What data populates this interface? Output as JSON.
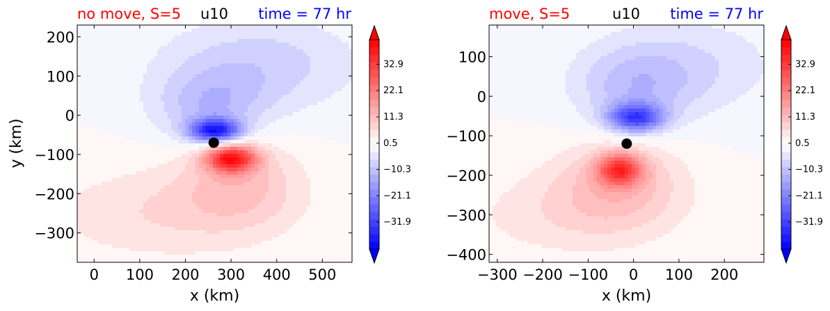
{
  "chart_data": [
    {
      "type": "heatmap",
      "title_left": "no move, S=5",
      "title_center": "u10",
      "title_right": "time = 77 hr",
      "title_left_color": "#ff0000",
      "title_center_color": "#000000",
      "title_right_color": "#0000ff",
      "xlabel": "x (km)",
      "ylabel": "y (km)",
      "xlim": [
        -37,
        565
      ],
      "ylim": [
        -375,
        230
      ],
      "xticks": [
        0,
        100,
        200,
        300,
        400,
        500
      ],
      "yticks": [
        200,
        100,
        0,
        -100,
        -200,
        -300
      ],
      "marker": {
        "x": 262,
        "y": -70
      },
      "features": [
        {
          "x": 265,
          "y": -40,
          "sx": 55,
          "sy": 30,
          "value": -36
        },
        {
          "x": 255,
          "y": 20,
          "sx": 120,
          "sy": 90,
          "value": -10
        },
        {
          "x": 360,
          "y": 130,
          "sx": 220,
          "sy": 120,
          "value": -8
        },
        {
          "x": 300,
          "y": -110,
          "sx": 55,
          "sy": 35,
          "value": 36
        },
        {
          "x": 320,
          "y": -170,
          "sx": 130,
          "sy": 110,
          "value": 9
        },
        {
          "x": 150,
          "y": -250,
          "sx": 260,
          "sy": 120,
          "value": 6
        }
      ]
    },
    {
      "type": "heatmap",
      "title_left": "move, S=5",
      "title_center": "u10",
      "title_right": "time = 77 hr",
      "title_left_color": "#ff0000",
      "title_center_color": "#000000",
      "title_right_color": "#0000ff",
      "xlabel": "x (km)",
      "ylabel": "",
      "xlim": [
        -318,
        287
      ],
      "ylim": [
        -420,
        180
      ],
      "xticks": [
        -300,
        -200,
        -100,
        0,
        100,
        200
      ],
      "yticks": [
        100,
        0,
        -100,
        -200,
        -300,
        -400
      ],
      "marker": {
        "x": -15,
        "y": -120
      },
      "features": [
        {
          "x": 5,
          "y": -55,
          "sx": 60,
          "sy": 35,
          "value": -30
        },
        {
          "x": 0,
          "y": 20,
          "sx": 130,
          "sy": 100,
          "value": -9
        },
        {
          "x": 120,
          "y": 80,
          "sx": 200,
          "sy": 120,
          "value": -6
        },
        {
          "x": -30,
          "y": -185,
          "sx": 50,
          "sy": 40,
          "value": 28
        },
        {
          "x": -30,
          "y": -220,
          "sx": 140,
          "sy": 110,
          "value": 10
        },
        {
          "x": -150,
          "y": -300,
          "sx": 220,
          "sy": 110,
          "value": 5
        }
      ]
    }
  ],
  "colorbar": {
    "vmin": -43,
    "vmax": 43,
    "levels": 28,
    "ticks": [
      32.9,
      22.1,
      11.3,
      0.5,
      -10.3,
      -21.1,
      -31.9
    ],
    "tick_labels": [
      "32.9",
      "22.1",
      "11.3",
      "0.5",
      "−10.3",
      "−21.1",
      "−31.9"
    ],
    "color_low": "#0000ff",
    "color_mid": "#ffffff",
    "color_high": "#ff0000"
  },
  "marker_color": "#000000"
}
